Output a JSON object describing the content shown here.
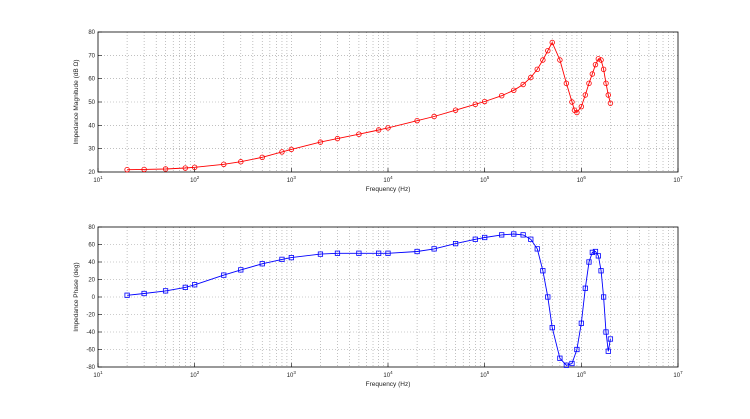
{
  "chart_data": [
    {
      "type": "line",
      "xscale": "log",
      "xlim": [
        10,
        10000000
      ],
      "ylim": [
        20,
        80
      ],
      "xlabel": "Frequency (Hz)",
      "ylabel": "Impedance Magnitude (dB Ω)",
      "grid": true,
      "x_ticks": [
        {
          "value": 10,
          "base": "10",
          "exp": "1"
        },
        {
          "value": 100,
          "base": "10",
          "exp": "2"
        },
        {
          "value": 1000,
          "base": "10",
          "exp": "3"
        },
        {
          "value": 10000,
          "base": "10",
          "exp": "4"
        },
        {
          "value": 100000,
          "base": "10",
          "exp": "5"
        },
        {
          "value": 1000000,
          "base": "10",
          "exp": "6"
        },
        {
          "value": 10000000,
          "base": "10",
          "exp": "7"
        }
      ],
      "y_ticks": [
        20,
        30,
        40,
        50,
        60,
        70,
        80
      ],
      "series": [
        {
          "color": "#ff0000",
          "marker": "circle",
          "x": [
            20,
            30,
            50,
            80,
            100,
            200,
            300,
            500,
            800,
            1000,
            2000,
            3000,
            5000,
            8000,
            10000,
            20000,
            30000,
            50000,
            80000,
            100000,
            150000,
            200000,
            250000,
            300000,
            350000,
            400000,
            450000,
            500000,
            600000,
            700000,
            800000,
            850000,
            900000,
            1000000,
            1100000,
            1200000,
            1300000,
            1400000,
            1500000,
            1600000,
            1700000,
            1800000,
            1900000,
            2000000
          ],
          "y": [
            21,
            21.1,
            21.3,
            21.7,
            22,
            23.3,
            24.4,
            26.3,
            28.6,
            29.7,
            32.8,
            34.3,
            36.2,
            38,
            38.9,
            42,
            43.8,
            46.5,
            49,
            50.2,
            52.7,
            55,
            57.5,
            60.5,
            64,
            68,
            72,
            75.5,
            68,
            58,
            50,
            46.5,
            45.5,
            48,
            53,
            58,
            62,
            66,
            68.5,
            68,
            64,
            58,
            53,
            49.5
          ]
        }
      ]
    },
    {
      "type": "line",
      "xscale": "log",
      "xlim": [
        10,
        10000000
      ],
      "ylim": [
        -80,
        80
      ],
      "xlabel": "Frequency (Hz)",
      "ylabel": "Impedance Phase (deg)",
      "grid": true,
      "x_ticks": [
        {
          "value": 10,
          "base": "10",
          "exp": "1"
        },
        {
          "value": 100,
          "base": "10",
          "exp": "2"
        },
        {
          "value": 1000,
          "base": "10",
          "exp": "3"
        },
        {
          "value": 10000,
          "base": "10",
          "exp": "4"
        },
        {
          "value": 100000,
          "base": "10",
          "exp": "5"
        },
        {
          "value": 1000000,
          "base": "10",
          "exp": "6"
        },
        {
          "value": 10000000,
          "base": "10",
          "exp": "7"
        }
      ],
      "y_ticks": [
        -80,
        -60,
        -40,
        -20,
        0,
        20,
        40,
        60,
        80
      ],
      "series": [
        {
          "color": "#0000ff",
          "marker": "square",
          "x": [
            20,
            30,
            50,
            80,
            100,
            200,
            300,
            500,
            800,
            1000,
            2000,
            3000,
            5000,
            8000,
            10000,
            20000,
            30000,
            50000,
            80000,
            100000,
            150000,
            200000,
            250000,
            300000,
            350000,
            400000,
            450000,
            500000,
            600000,
            700000,
            800000,
            900000,
            1000000,
            1100000,
            1200000,
            1300000,
            1400000,
            1500000,
            1600000,
            1700000,
            1800000,
            1900000,
            2000000
          ],
          "y": [
            2,
            4,
            7,
            11,
            14,
            25,
            31,
            38,
            43,
            45,
            49,
            50,
            50,
            50,
            50,
            52,
            55,
            61,
            66,
            68,
            71,
            72,
            71,
            66,
            55,
            30,
            0,
            -35,
            -70,
            -78,
            -76,
            -60,
            -30,
            10,
            40,
            51,
            52,
            47,
            30,
            0,
            -40,
            -62,
            -48
          ]
        }
      ]
    }
  ]
}
